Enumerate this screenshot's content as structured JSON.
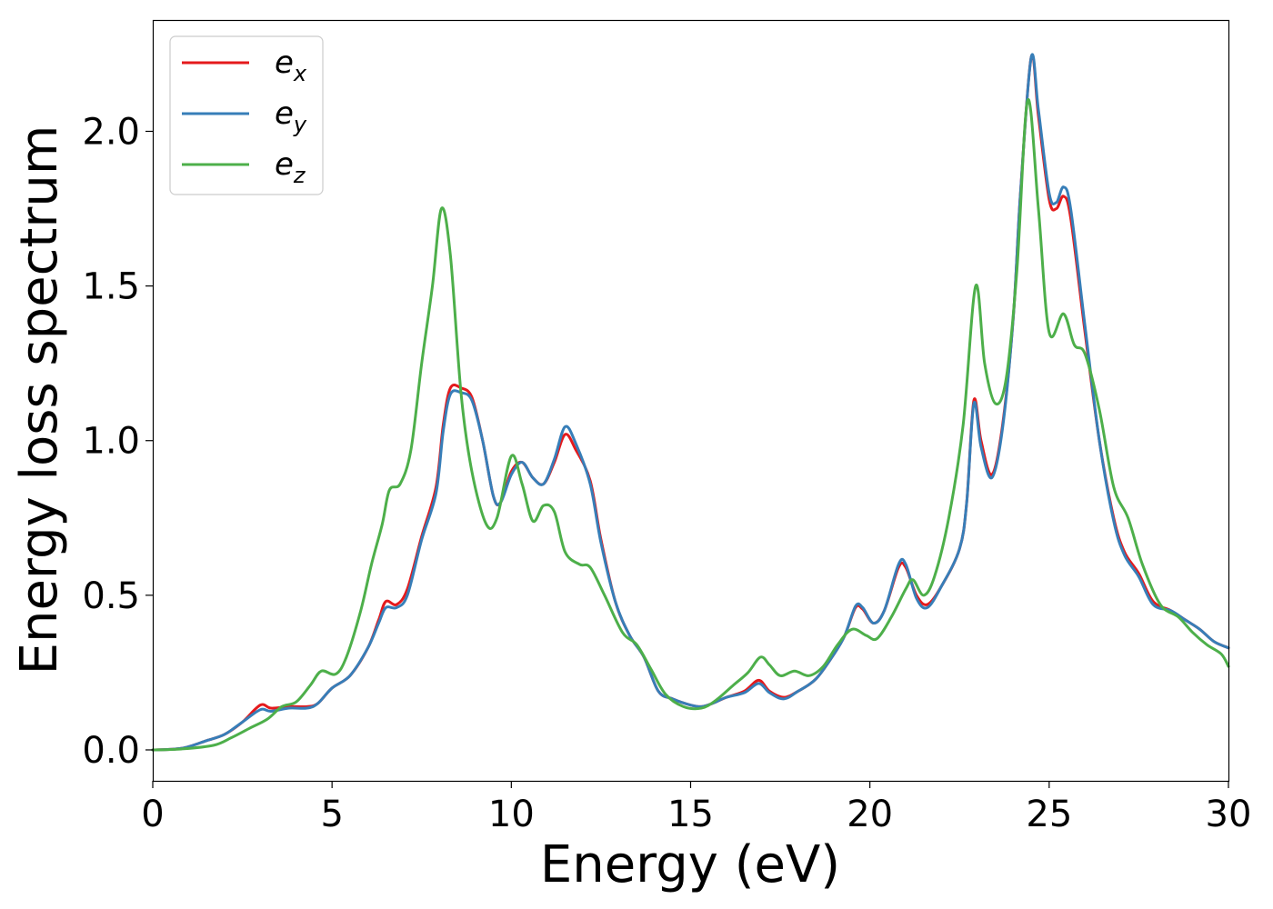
{
  "chart_data": {
    "type": "line",
    "xlabel": "Energy (eV)",
    "ylabel": "Energy loss spectrum",
    "xlim": [
      0,
      30
    ],
    "ylim": [
      -0.1,
      2.36
    ],
    "x_ticks": [
      "0",
      "5",
      "10",
      "15",
      "20",
      "25",
      "30"
    ],
    "y_ticks": [
      "0.0",
      "0.5",
      "1.0",
      "1.5",
      "2.0"
    ],
    "legend_position": "top-left",
    "grid": false,
    "series": [
      {
        "name": "e_x",
        "label_base": "e",
        "label_sub": "x",
        "color": "#e41a1c",
        "points": [
          [
            0,
            0
          ],
          [
            0.8,
            0.005
          ],
          [
            1.5,
            0.03
          ],
          [
            2,
            0.05
          ],
          [
            2.5,
            0.09
          ],
          [
            3,
            0.145
          ],
          [
            3.3,
            0.135
          ],
          [
            3.8,
            0.14
          ],
          [
            4.3,
            0.14
          ],
          [
            4.6,
            0.15
          ],
          [
            5,
            0.2
          ],
          [
            5.5,
            0.24
          ],
          [
            6,
            0.33
          ],
          [
            6.3,
            0.42
          ],
          [
            6.5,
            0.48
          ],
          [
            6.8,
            0.47
          ],
          [
            7.1,
            0.52
          ],
          [
            7.5,
            0.69
          ],
          [
            7.9,
            0.85
          ],
          [
            8.1,
            1.05
          ],
          [
            8.3,
            1.17
          ],
          [
            8.6,
            1.17
          ],
          [
            8.9,
            1.14
          ],
          [
            9.2,
            1.0
          ],
          [
            9.5,
            0.82
          ],
          [
            9.7,
            0.8
          ],
          [
            10,
            0.9
          ],
          [
            10.3,
            0.93
          ],
          [
            10.6,
            0.88
          ],
          [
            10.9,
            0.86
          ],
          [
            11.2,
            0.93
          ],
          [
            11.5,
            1.02
          ],
          [
            11.8,
            0.97
          ],
          [
            12.2,
            0.87
          ],
          [
            12.5,
            0.68
          ],
          [
            12.9,
            0.48
          ],
          [
            13.3,
            0.37
          ],
          [
            13.7,
            0.3
          ],
          [
            14.1,
            0.19
          ],
          [
            14.5,
            0.165
          ],
          [
            15,
            0.145
          ],
          [
            15.3,
            0.14
          ],
          [
            15.6,
            0.15
          ],
          [
            16,
            0.17
          ],
          [
            16.5,
            0.19
          ],
          [
            16.9,
            0.225
          ],
          [
            17.2,
            0.19
          ],
          [
            17.6,
            0.17
          ],
          [
            18,
            0.19
          ],
          [
            18.5,
            0.23
          ],
          [
            19,
            0.31
          ],
          [
            19.3,
            0.37
          ],
          [
            19.6,
            0.46
          ],
          [
            19.8,
            0.455
          ],
          [
            20.1,
            0.41
          ],
          [
            20.4,
            0.45
          ],
          [
            20.8,
            0.59
          ],
          [
            21.0,
            0.59
          ],
          [
            21.3,
            0.5
          ],
          [
            21.6,
            0.47
          ],
          [
            22,
            0.53
          ],
          [
            22.5,
            0.65
          ],
          [
            22.7,
            0.8
          ],
          [
            22.9,
            1.13
          ],
          [
            23.1,
            1.0
          ],
          [
            23.4,
            0.89
          ],
          [
            23.7,
            1.05
          ],
          [
            24.0,
            1.4
          ],
          [
            24.2,
            1.8
          ],
          [
            24.5,
            2.24
          ],
          [
            24.7,
            2.05
          ],
          [
            25.0,
            1.78
          ],
          [
            25.2,
            1.75
          ],
          [
            25.4,
            1.79
          ],
          [
            25.6,
            1.72
          ],
          [
            26,
            1.35
          ],
          [
            26.4,
            1.0
          ],
          [
            26.8,
            0.75
          ],
          [
            27.1,
            0.64
          ],
          [
            27.5,
            0.57
          ],
          [
            27.9,
            0.48
          ],
          [
            28.4,
            0.45
          ],
          [
            28.8,
            0.42
          ],
          [
            29.2,
            0.39
          ],
          [
            29.6,
            0.35
          ],
          [
            30,
            0.33
          ]
        ]
      },
      {
        "name": "e_y",
        "label_base": "e",
        "label_sub": "y",
        "color": "#377eb8",
        "points": [
          [
            0,
            0
          ],
          [
            0.8,
            0.005
          ],
          [
            1.5,
            0.03
          ],
          [
            2,
            0.05
          ],
          [
            2.5,
            0.09
          ],
          [
            3,
            0.13
          ],
          [
            3.3,
            0.125
          ],
          [
            3.8,
            0.135
          ],
          [
            4.3,
            0.135
          ],
          [
            4.6,
            0.15
          ],
          [
            5,
            0.2
          ],
          [
            5.5,
            0.24
          ],
          [
            6,
            0.33
          ],
          [
            6.3,
            0.41
          ],
          [
            6.5,
            0.46
          ],
          [
            6.8,
            0.46
          ],
          [
            7.1,
            0.5
          ],
          [
            7.5,
            0.68
          ],
          [
            7.9,
            0.83
          ],
          [
            8.1,
            1.03
          ],
          [
            8.3,
            1.15
          ],
          [
            8.6,
            1.155
          ],
          [
            8.9,
            1.13
          ],
          [
            9.2,
            1.0
          ],
          [
            9.5,
            0.82
          ],
          [
            9.7,
            0.8
          ],
          [
            10,
            0.89
          ],
          [
            10.3,
            0.93
          ],
          [
            10.6,
            0.88
          ],
          [
            10.9,
            0.86
          ],
          [
            11.2,
            0.94
          ],
          [
            11.5,
            1.045
          ],
          [
            11.8,
            0.99
          ],
          [
            12.2,
            0.86
          ],
          [
            12.5,
            0.67
          ],
          [
            12.9,
            0.48
          ],
          [
            13.3,
            0.37
          ],
          [
            13.7,
            0.3
          ],
          [
            14.1,
            0.19
          ],
          [
            14.5,
            0.165
          ],
          [
            15,
            0.145
          ],
          [
            15.3,
            0.14
          ],
          [
            15.6,
            0.15
          ],
          [
            16,
            0.17
          ],
          [
            16.5,
            0.185
          ],
          [
            16.9,
            0.215
          ],
          [
            17.2,
            0.185
          ],
          [
            17.6,
            0.165
          ],
          [
            18,
            0.19
          ],
          [
            18.5,
            0.23
          ],
          [
            19,
            0.31
          ],
          [
            19.3,
            0.37
          ],
          [
            19.6,
            0.465
          ],
          [
            19.8,
            0.46
          ],
          [
            20.1,
            0.41
          ],
          [
            20.4,
            0.45
          ],
          [
            20.8,
            0.6
          ],
          [
            21.0,
            0.6
          ],
          [
            21.3,
            0.49
          ],
          [
            21.6,
            0.46
          ],
          [
            22,
            0.53
          ],
          [
            22.5,
            0.65
          ],
          [
            22.7,
            0.8
          ],
          [
            22.9,
            1.12
          ],
          [
            23.1,
            0.98
          ],
          [
            23.4,
            0.88
          ],
          [
            23.7,
            1.04
          ],
          [
            24.0,
            1.4
          ],
          [
            24.2,
            1.8
          ],
          [
            24.5,
            2.24
          ],
          [
            24.7,
            2.07
          ],
          [
            25.0,
            1.8
          ],
          [
            25.2,
            1.77
          ],
          [
            25.4,
            1.82
          ],
          [
            25.6,
            1.75
          ],
          [
            26,
            1.37
          ],
          [
            26.4,
            1.0
          ],
          [
            26.8,
            0.74
          ],
          [
            27.1,
            0.63
          ],
          [
            27.5,
            0.56
          ],
          [
            27.9,
            0.47
          ],
          [
            28.4,
            0.45
          ],
          [
            28.8,
            0.42
          ],
          [
            29.2,
            0.39
          ],
          [
            29.6,
            0.35
          ],
          [
            30,
            0.33
          ]
        ]
      },
      {
        "name": "e_z",
        "label_base": "e",
        "label_sub": "z",
        "color": "#4daf4a",
        "points": [
          [
            0,
            0
          ],
          [
            0.8,
            0.003
          ],
          [
            1.7,
            0.015
          ],
          [
            2.2,
            0.04
          ],
          [
            2.7,
            0.07
          ],
          [
            3.2,
            0.1
          ],
          [
            3.6,
            0.14
          ],
          [
            4.0,
            0.155
          ],
          [
            4.4,
            0.21
          ],
          [
            4.7,
            0.255
          ],
          [
            5.1,
            0.245
          ],
          [
            5.4,
            0.3
          ],
          [
            5.8,
            0.45
          ],
          [
            6.1,
            0.6
          ],
          [
            6.4,
            0.73
          ],
          [
            6.6,
            0.84
          ],
          [
            6.9,
            0.86
          ],
          [
            7.2,
            0.97
          ],
          [
            7.5,
            1.25
          ],
          [
            7.8,
            1.5
          ],
          [
            8.05,
            1.75
          ],
          [
            8.3,
            1.6
          ],
          [
            8.6,
            1.15
          ],
          [
            8.9,
            0.9
          ],
          [
            9.3,
            0.73
          ],
          [
            9.6,
            0.75
          ],
          [
            10.0,
            0.95
          ],
          [
            10.3,
            0.86
          ],
          [
            10.6,
            0.74
          ],
          [
            10.9,
            0.79
          ],
          [
            11.2,
            0.77
          ],
          [
            11.5,
            0.64
          ],
          [
            11.9,
            0.6
          ],
          [
            12.2,
            0.59
          ],
          [
            12.6,
            0.5
          ],
          [
            13.1,
            0.38
          ],
          [
            13.5,
            0.34
          ],
          [
            13.9,
            0.26
          ],
          [
            14.3,
            0.18
          ],
          [
            14.8,
            0.14
          ],
          [
            15.3,
            0.135
          ],
          [
            15.7,
            0.16
          ],
          [
            16.2,
            0.21
          ],
          [
            16.6,
            0.25
          ],
          [
            16.95,
            0.3
          ],
          [
            17.2,
            0.275
          ],
          [
            17.5,
            0.24
          ],
          [
            17.9,
            0.255
          ],
          [
            18.3,
            0.24
          ],
          [
            18.7,
            0.27
          ],
          [
            19.1,
            0.34
          ],
          [
            19.5,
            0.39
          ],
          [
            19.9,
            0.37
          ],
          [
            20.2,
            0.36
          ],
          [
            20.6,
            0.43
          ],
          [
            21.0,
            0.52
          ],
          [
            21.2,
            0.55
          ],
          [
            21.5,
            0.5
          ],
          [
            21.8,
            0.56
          ],
          [
            22.2,
            0.75
          ],
          [
            22.6,
            1.05
          ],
          [
            22.95,
            1.5
          ],
          [
            23.2,
            1.25
          ],
          [
            23.5,
            1.12
          ],
          [
            23.8,
            1.2
          ],
          [
            24.1,
            1.55
          ],
          [
            24.4,
            2.1
          ],
          [
            24.7,
            1.75
          ],
          [
            25.0,
            1.35
          ],
          [
            25.4,
            1.41
          ],
          [
            25.7,
            1.31
          ],
          [
            26.0,
            1.28
          ],
          [
            26.4,
            1.1
          ],
          [
            26.8,
            0.85
          ],
          [
            27.2,
            0.75
          ],
          [
            27.6,
            0.6
          ],
          [
            28.1,
            0.47
          ],
          [
            28.6,
            0.43
          ],
          [
            29.0,
            0.38
          ],
          [
            29.4,
            0.34
          ],
          [
            29.8,
            0.31
          ],
          [
            30,
            0.27
          ]
        ]
      }
    ]
  }
}
